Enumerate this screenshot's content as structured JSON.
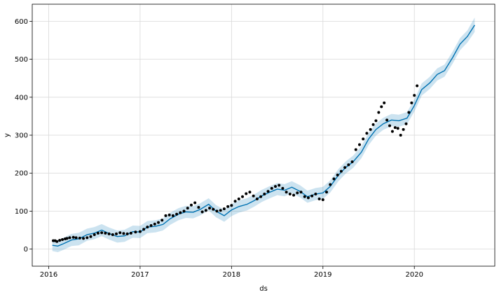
{
  "chart_data": {
    "type": "line",
    "title": "",
    "xlabel": "ds",
    "ylabel": "y",
    "x_ticks": [
      2016,
      2017,
      2018,
      2019,
      2020
    ],
    "x_tick_labels": [
      "2016",
      "2017",
      "2018",
      "2019",
      "2020"
    ],
    "y_ticks": [
      0,
      100,
      200,
      300,
      400,
      500,
      600
    ],
    "y_tick_labels": [
      "0",
      "100",
      "200",
      "300",
      "400",
      "500",
      "600"
    ],
    "xlim": [
      2015.82,
      2020.88
    ],
    "ylim": [
      -45,
      645
    ],
    "grid": true,
    "colors": {
      "forecast_line": "#0072B2",
      "interval_fill": "#0072B2",
      "observed_points": "#000000",
      "grid": "#d9d9d9"
    },
    "forecast": {
      "x": [
        2016.04,
        2016.1,
        2016.16,
        2016.25,
        2016.33,
        2016.42,
        2016.5,
        2016.58,
        2016.66,
        2016.75,
        2016.83,
        2016.92,
        2017.0,
        2017.08,
        2017.17,
        2017.25,
        2017.33,
        2017.42,
        2017.5,
        2017.58,
        2017.66,
        2017.75,
        2017.83,
        2017.92,
        2018.0,
        2018.08,
        2018.17,
        2018.25,
        2018.33,
        2018.42,
        2018.5,
        2018.58,
        2018.66,
        2018.75,
        2018.83,
        2018.92,
        2019.0,
        2019.08,
        2019.17,
        2019.25,
        2019.33,
        2019.42,
        2019.5,
        2019.58,
        2019.66,
        2019.75,
        2019.83,
        2019.92,
        2020.0,
        2020.08,
        2020.17,
        2020.25,
        2020.33,
        2020.42,
        2020.5,
        2020.58,
        2020.66
      ],
      "yhat": [
        10,
        8,
        14,
        24,
        27,
        38,
        42,
        50,
        41,
        33,
        35,
        46,
        45,
        58,
        60,
        65,
        80,
        92,
        98,
        97,
        105,
        118,
        100,
        88,
        103,
        112,
        118,
        128,
        140,
        150,
        158,
        155,
        163,
        152,
        138,
        145,
        148,
        165,
        195,
        215,
        230,
        255,
        290,
        315,
        330,
        340,
        338,
        345,
        378,
        420,
        438,
        460,
        470,
        505,
        540,
        560,
        590
      ],
      "yhat_lower": [
        -5,
        -8,
        -2,
        8,
        10,
        22,
        26,
        34,
        25,
        17,
        19,
        30,
        29,
        42,
        44,
        49,
        64,
        76,
        82,
        81,
        89,
        102,
        84,
        72,
        87,
        96,
        102,
        112,
        124,
        134,
        142,
        139,
        147,
        136,
        122,
        129,
        132,
        149,
        179,
        199,
        214,
        239,
        274,
        299,
        314,
        324,
        322,
        329,
        362,
        404,
        422,
        444,
        454,
        489,
        524,
        544,
        572
      ],
      "yhat_upper": [
        25,
        24,
        30,
        40,
        43,
        54,
        58,
        66,
        57,
        49,
        51,
        62,
        61,
        74,
        76,
        81,
        96,
        108,
        114,
        113,
        121,
        134,
        116,
        104,
        119,
        128,
        134,
        144,
        156,
        166,
        174,
        171,
        179,
        168,
        154,
        161,
        164,
        181,
        211,
        231,
        246,
        271,
        306,
        331,
        346,
        356,
        354,
        361,
        394,
        436,
        454,
        476,
        486,
        521,
        556,
        576,
        610
      ]
    },
    "observed": {
      "x": [
        2016.05,
        2016.07,
        2016.09,
        2016.12,
        2016.15,
        2016.18,
        2016.2,
        2016.23,
        2016.27,
        2016.3,
        2016.34,
        2016.38,
        2016.42,
        2016.46,
        2016.5,
        2016.54,
        2016.58,
        2016.62,
        2016.66,
        2016.7,
        2016.74,
        2016.78,
        2016.82,
        2016.86,
        2016.9,
        2016.95,
        2017.0,
        2017.04,
        2017.08,
        2017.12,
        2017.16,
        2017.2,
        2017.24,
        2017.28,
        2017.32,
        2017.36,
        2017.4,
        2017.44,
        2017.48,
        2017.52,
        2017.56,
        2017.6,
        2017.64,
        2017.68,
        2017.72,
        2017.76,
        2017.8,
        2017.84,
        2017.88,
        2017.92,
        2017.96,
        2018.0,
        2018.04,
        2018.08,
        2018.12,
        2018.16,
        2018.2,
        2018.24,
        2018.28,
        2018.32,
        2018.36,
        2018.4,
        2018.44,
        2018.48,
        2018.52,
        2018.56,
        2018.6,
        2018.64,
        2018.68,
        2018.72,
        2018.76,
        2018.8,
        2018.84,
        2018.88,
        2018.92,
        2018.96,
        2019.0,
        2019.04,
        2019.08,
        2019.12,
        2019.16,
        2019.2,
        2019.24,
        2019.28,
        2019.32,
        2019.36,
        2019.4,
        2019.44,
        2019.48,
        2019.52,
        2019.55,
        2019.58,
        2019.61,
        2019.64,
        2019.67,
        2019.7,
        2019.73,
        2019.76,
        2019.79,
        2019.82,
        2019.85,
        2019.88,
        2019.91,
        2019.94,
        2019.97,
        2020.0,
        2020.03
      ],
      "y": [
        22,
        22,
        20,
        23,
        25,
        27,
        28,
        30,
        31,
        30,
        29,
        28,
        30,
        33,
        38,
        42,
        43,
        42,
        40,
        38,
        40,
        43,
        41,
        40,
        42,
        45,
        46,
        52,
        58,
        62,
        66,
        70,
        76,
        88,
        90,
        88,
        92,
        96,
        100,
        108,
        116,
        122,
        110,
        98,
        102,
        108,
        105,
        100,
        102,
        106,
        112,
        115,
        126,
        132,
        138,
        146,
        150,
        140,
        132,
        138,
        145,
        152,
        160,
        165,
        168,
        160,
        150,
        145,
        142,
        148,
        150,
        138,
        135,
        140,
        145,
        132,
        130,
        150,
        170,
        185,
        195,
        205,
        215,
        222,
        230,
        262,
        275,
        290,
        305,
        315,
        328,
        338,
        360,
        375,
        385,
        340,
        325,
        310,
        320,
        318,
        300,
        315,
        330,
        360,
        385,
        405,
        430
      ]
    }
  }
}
